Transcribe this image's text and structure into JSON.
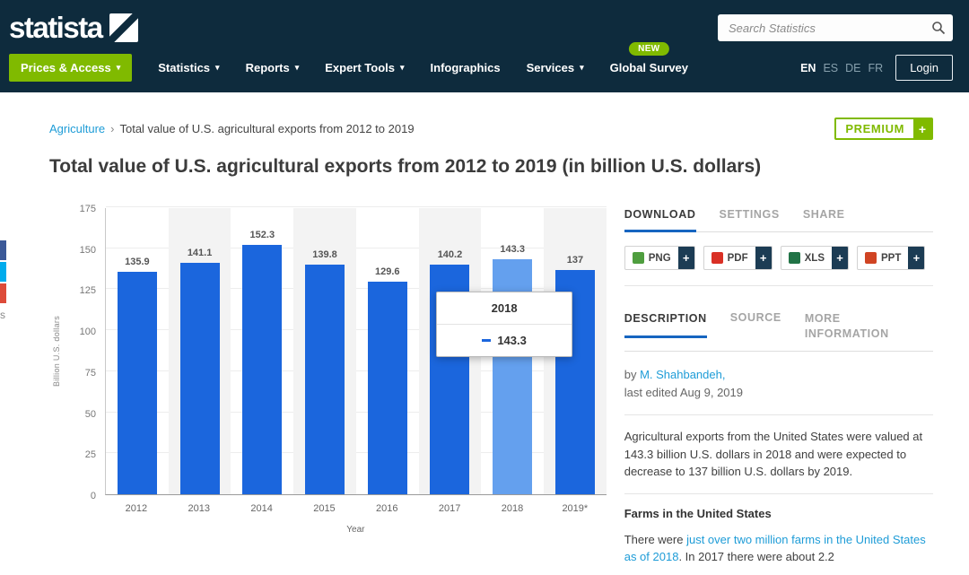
{
  "ui": {
    "plus": "+",
    "caret": "▾"
  },
  "header": {
    "logo_text": "statista",
    "search_placeholder": "Search Statistics",
    "languages": [
      "EN",
      "ES",
      "DE",
      "FR"
    ],
    "login_label": "Login",
    "nav": [
      {
        "label": "Prices & Access",
        "highlight": true,
        "dropdown": true
      },
      {
        "label": "Statistics",
        "dropdown": true
      },
      {
        "label": "Reports",
        "dropdown": true
      },
      {
        "label": "Expert Tools",
        "dropdown": true
      },
      {
        "label": "Infographics",
        "dropdown": false
      },
      {
        "label": "Services",
        "dropdown": true
      },
      {
        "label": "Global Survey",
        "dropdown": false,
        "badge": "NEW"
      }
    ]
  },
  "social": [
    {
      "name": "facebook",
      "color": "#3b5998"
    },
    {
      "name": "twitter",
      "color": "#00aced"
    },
    {
      "name": "google-plus",
      "color": "#dd4b39"
    },
    {
      "name": "share-more",
      "color": "#ffffff",
      "text": "s"
    }
  ],
  "breadcrumb": {
    "category": "Agriculture",
    "separator": "›",
    "current": "Total value of U.S. agricultural exports from 2012 to 2019"
  },
  "premium_badge": "PREMIUM",
  "page_title": "Total value of U.S. agricultural exports from 2012 to 2019 (in billion U.S. dollars)",
  "chart_data": {
    "type": "bar",
    "categories": [
      "2012",
      "2013",
      "2014",
      "2015",
      "2016",
      "2017",
      "2018",
      "2019*"
    ],
    "values": [
      135.9,
      141.1,
      152.3,
      139.8,
      129.6,
      140.2,
      143.3,
      137
    ],
    "highlighted_index": 6,
    "tooltip": {
      "title": "2018",
      "value": "143.3"
    },
    "title": "Total value of U.S. agricultural exports from 2012 to 2019 (in billion U.S. dollars)",
    "xlabel": "Year",
    "ylabel": "Billion U.S. dollars",
    "ylim": [
      0,
      175
    ],
    "yticks": [
      0,
      25,
      50,
      75,
      100,
      125,
      150,
      175
    ],
    "grid": "vertical-stripes",
    "legend": "none",
    "bar_color": "#1b66dd",
    "highlight_color": "#64a0ee"
  },
  "side_panel": {
    "download_tabs": [
      "DOWNLOAD",
      "SETTINGS",
      "SHARE"
    ],
    "active_download_tab": "DOWNLOAD",
    "download_buttons": [
      {
        "label": "PNG",
        "color": "#4f9e3f"
      },
      {
        "label": "PDF",
        "color": "#d93025"
      },
      {
        "label": "XLS",
        "color": "#217346"
      },
      {
        "label": "PPT",
        "color": "#d04423"
      }
    ],
    "info_tabs": [
      "DESCRIPTION",
      "SOURCE",
      "MORE INFORMATION"
    ],
    "active_info_tab": "DESCRIPTION",
    "byline_prefix": "by ",
    "author": "M. Shahbandeh,",
    "last_edited": "last edited Aug 9, 2019",
    "description": "Agricultural exports from the United States were valued at 143.3 billion U.S. dollars in 2018 and were expected to decrease to 137 billion U.S. dollars by 2019.",
    "subheading": "Farms in the United States",
    "paragraph2_prefix": "There were ",
    "paragraph2_link": "just over two million farms in the United States as of 2018",
    "paragraph2_suffix": ". In 2017 there were about 2.2"
  }
}
